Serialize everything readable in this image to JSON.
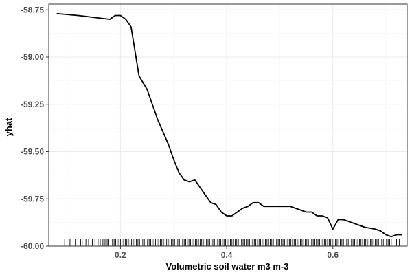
{
  "chart_data": {
    "type": "line",
    "xlabel": "Volumetric soil water m3 m-3",
    "ylabel": "yhat",
    "xlim": [
      0.065,
      0.74
    ],
    "ylim": [
      -60.0,
      -58.72
    ],
    "x_ticks": [
      0.2,
      0.4,
      0.6
    ],
    "x_tick_labels": [
      "0.2",
      "0.4",
      "0.6"
    ],
    "y_ticks": [
      -60.0,
      -59.75,
      -59.5,
      -59.25,
      -59.0,
      -58.75
    ],
    "y_tick_labels": [
      "-60.00",
      "-59.75",
      "-59.50",
      "-59.25",
      "-59.00",
      "-58.75"
    ],
    "grid": true,
    "colors": {
      "line": "#000000",
      "rug": "#000000",
      "grid": "#ebebeb",
      "border": "#333333"
    },
    "series": [
      {
        "x": [
          0.08,
          0.12,
          0.15,
          0.18,
          0.19,
          0.2,
          0.21,
          0.22,
          0.235,
          0.25,
          0.27,
          0.29,
          0.3,
          0.31,
          0.32,
          0.33,
          0.34,
          0.35,
          0.36,
          0.37,
          0.38,
          0.39,
          0.4,
          0.41,
          0.42,
          0.43,
          0.44,
          0.45,
          0.46,
          0.47,
          0.48,
          0.5,
          0.52,
          0.53,
          0.54,
          0.55,
          0.56,
          0.57,
          0.58,
          0.59,
          0.6,
          0.61,
          0.62,
          0.63,
          0.64,
          0.65,
          0.66,
          0.68,
          0.69,
          0.7,
          0.71,
          0.72,
          0.73
        ],
        "y": [
          -58.77,
          -58.78,
          -58.79,
          -58.8,
          -58.78,
          -58.78,
          -58.8,
          -58.84,
          -59.1,
          -59.17,
          -59.33,
          -59.46,
          -59.54,
          -59.61,
          -59.65,
          -59.66,
          -59.65,
          -59.69,
          -59.73,
          -59.77,
          -59.78,
          -59.82,
          -59.84,
          -59.84,
          -59.82,
          -59.8,
          -59.79,
          -59.77,
          -59.77,
          -59.79,
          -59.79,
          -59.79,
          -59.79,
          -59.8,
          -59.81,
          -59.82,
          -59.82,
          -59.84,
          -59.84,
          -59.85,
          -59.91,
          -59.86,
          -59.86,
          -59.87,
          -59.88,
          -59.89,
          -59.9,
          -59.91,
          -59.92,
          -59.94,
          -59.95,
          -59.94,
          -59.94
        ]
      }
    ],
    "rug_x": [
      0.095,
      0.105,
      0.115,
      0.125,
      0.128,
      0.135,
      0.14,
      0.147,
      0.152,
      0.158,
      0.162,
      0.167,
      0.171,
      0.175,
      0.178,
      0.182,
      0.185,
      0.188,
      0.191,
      0.194,
      0.197,
      0.2,
      0.203,
      0.206,
      0.209,
      0.212,
      0.215,
      0.218,
      0.221,
      0.224,
      0.227,
      0.23,
      0.233,
      0.236,
      0.239,
      0.242,
      0.245,
      0.248,
      0.251,
      0.254,
      0.257,
      0.26,
      0.263,
      0.266,
      0.269,
      0.272,
      0.275,
      0.278,
      0.281,
      0.284,
      0.287,
      0.29,
      0.293,
      0.296,
      0.299,
      0.302,
      0.305,
      0.308,
      0.311,
      0.314,
      0.317,
      0.32,
      0.323,
      0.326,
      0.329,
      0.332,
      0.335,
      0.338,
      0.341,
      0.344,
      0.347,
      0.35,
      0.353,
      0.356,
      0.359,
      0.362,
      0.365,
      0.368,
      0.371,
      0.374,
      0.377,
      0.38,
      0.383,
      0.386,
      0.389,
      0.392,
      0.395,
      0.398,
      0.401,
      0.404,
      0.407,
      0.41,
      0.413,
      0.416,
      0.419,
      0.422,
      0.425,
      0.428,
      0.431,
      0.434,
      0.437,
      0.44,
      0.443,
      0.446,
      0.449,
      0.452,
      0.455,
      0.458,
      0.461,
      0.464,
      0.467,
      0.47,
      0.473,
      0.476,
      0.479,
      0.482,
      0.485,
      0.488,
      0.491,
      0.494,
      0.497,
      0.5,
      0.503,
      0.506,
      0.509,
      0.512,
      0.515,
      0.518,
      0.521,
      0.524,
      0.527,
      0.53,
      0.533,
      0.536,
      0.539,
      0.542,
      0.545,
      0.548,
      0.551,
      0.554,
      0.557,
      0.56,
      0.563,
      0.566,
      0.569,
      0.572,
      0.575,
      0.578,
      0.581,
      0.584,
      0.587,
      0.59,
      0.593,
      0.596,
      0.599,
      0.602,
      0.605,
      0.608,
      0.611,
      0.614,
      0.617,
      0.62,
      0.623,
      0.626,
      0.629,
      0.632,
      0.635,
      0.638,
      0.641,
      0.644,
      0.647,
      0.65,
      0.653,
      0.656,
      0.659,
      0.662,
      0.665,
      0.668,
      0.671,
      0.674,
      0.677,
      0.68,
      0.683,
      0.686,
      0.689,
      0.692,
      0.695,
      0.698,
      0.701,
      0.704,
      0.707,
      0.71,
      0.72,
      0.725
    ]
  }
}
